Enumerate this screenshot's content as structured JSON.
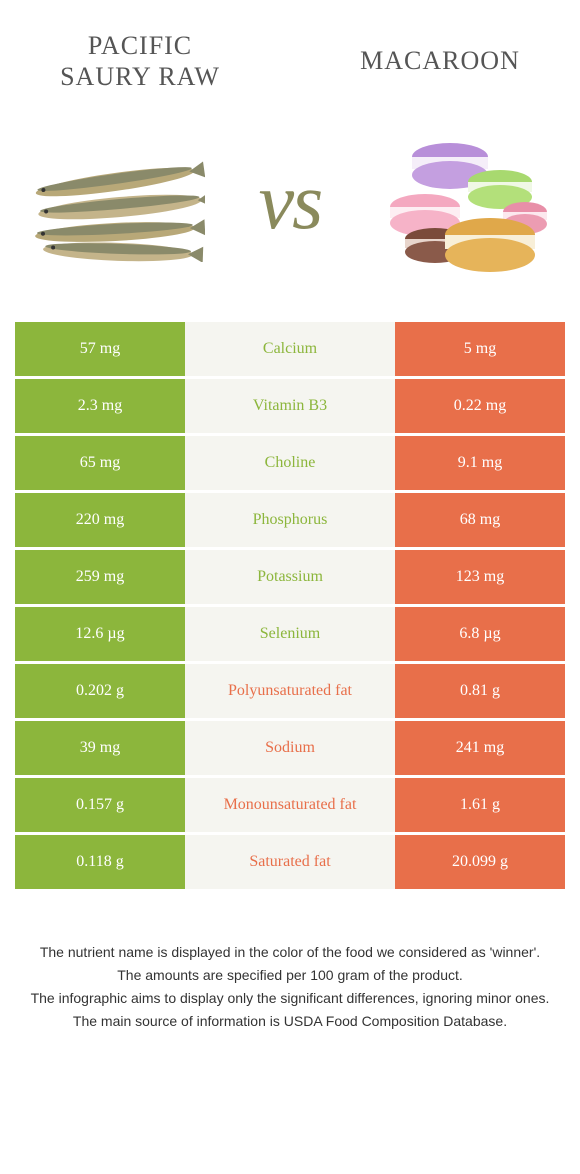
{
  "header": {
    "left_title": "Pacific saury raw",
    "right_title": "Macaroon",
    "vs": "vs"
  },
  "colors": {
    "left": "#8cb63c",
    "right": "#e86f4a",
    "mid_bg": "#f5f5f0"
  },
  "rows": [
    {
      "left": "57 mg",
      "label": "Calcium",
      "right": "5 mg",
      "winner": "left"
    },
    {
      "left": "2.3 mg",
      "label": "Vitamin B3",
      "right": "0.22 mg",
      "winner": "left"
    },
    {
      "left": "65 mg",
      "label": "Choline",
      "right": "9.1 mg",
      "winner": "left"
    },
    {
      "left": "220 mg",
      "label": "Phosphorus",
      "right": "68 mg",
      "winner": "left"
    },
    {
      "left": "259 mg",
      "label": "Potassium",
      "right": "123 mg",
      "winner": "left"
    },
    {
      "left": "12.6 µg",
      "label": "Selenium",
      "right": "6.8 µg",
      "winner": "left"
    },
    {
      "left": "0.202 g",
      "label": "Polyunsaturated fat",
      "right": "0.81 g",
      "winner": "right"
    },
    {
      "left": "39 mg",
      "label": "Sodium",
      "right": "241 mg",
      "winner": "right"
    },
    {
      "left": "0.157 g",
      "label": "Monounsaturated fat",
      "right": "1.61 g",
      "winner": "right"
    },
    {
      "left": "0.118 g",
      "label": "Saturated fat",
      "right": "20.099 g",
      "winner": "right"
    }
  ],
  "footer": {
    "line1": "The nutrient name is displayed in the color of the food we considered as 'winner'.",
    "line2": "The amounts are specified per 100 gram of the product.",
    "line3": "The infographic aims to display only the significant differences, ignoring minor ones.",
    "line4": "The main source of information is USDA Food Composition Database."
  }
}
